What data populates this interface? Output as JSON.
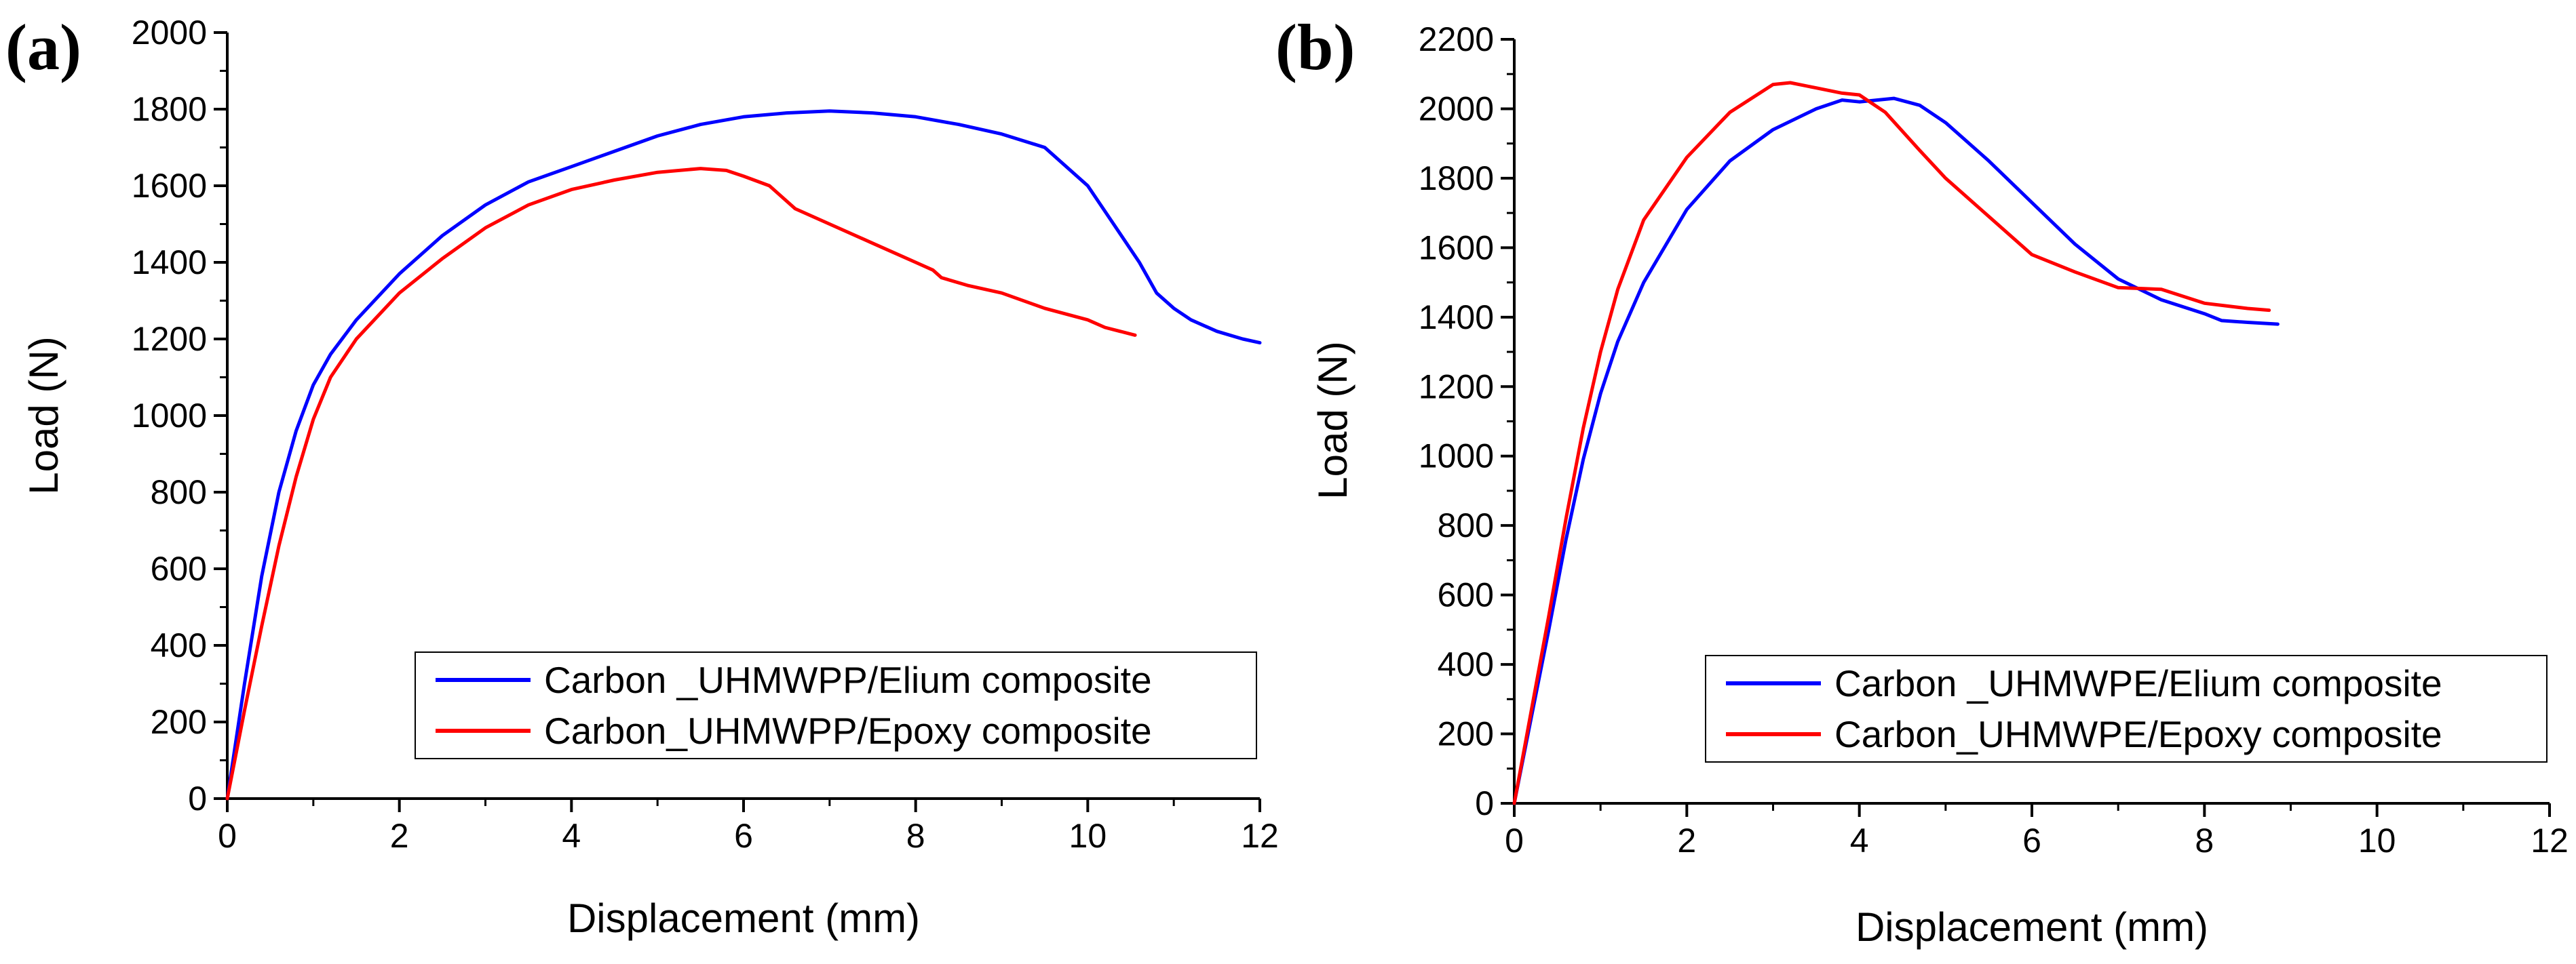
{
  "chart_data": [
    {
      "type": "line",
      "panel_label": "(a)",
      "xlabel": "Displacement (mm)",
      "ylabel": "Load (N)",
      "xlim": [
        0,
        12
      ],
      "ylim": [
        0,
        2000
      ],
      "xticks": [
        "0",
        "2",
        "4",
        "6",
        "8",
        "10",
        "12"
      ],
      "yticks": [
        "0",
        "200",
        "400",
        "600",
        "800",
        "1000",
        "1200",
        "1400",
        "1600",
        "1800",
        "2000"
      ],
      "legend_position": "bottom-right",
      "series": [
        {
          "name": "Carbon _UHMWPP/Elium composite",
          "color": "#0000ff",
          "x": [
            0,
            0.2,
            0.4,
            0.6,
            0.8,
            1.0,
            1.2,
            1.5,
            2.0,
            2.5,
            3.0,
            3.5,
            4.0,
            4.5,
            5.0,
            5.5,
            6.0,
            6.5,
            7.0,
            7.5,
            8.0,
            8.5,
            9.0,
            9.5,
            10.0,
            10.3,
            10.6,
            10.8,
            11.0,
            11.2,
            11.5,
            11.8,
            12.0
          ],
          "y": [
            0,
            300,
            580,
            800,
            960,
            1080,
            1160,
            1250,
            1370,
            1470,
            1550,
            1610,
            1650,
            1690,
            1730,
            1760,
            1780,
            1790,
            1795,
            1790,
            1780,
            1760,
            1735,
            1700,
            1600,
            1500,
            1400,
            1320,
            1280,
            1250,
            1220,
            1200,
            1190
          ]
        },
        {
          "name": "Carbon_UHMWPP/Epoxy composite",
          "color": "#ff0000",
          "x": [
            0,
            0.2,
            0.4,
            0.6,
            0.8,
            1.0,
            1.2,
            1.5,
            2.0,
            2.5,
            3.0,
            3.5,
            4.0,
            4.5,
            5.0,
            5.5,
            5.8,
            6.0,
            6.3,
            6.6,
            7.0,
            7.5,
            8.0,
            8.2,
            8.3,
            8.6,
            9.0,
            9.5,
            10.0,
            10.2,
            10.55
          ],
          "y": [
            0,
            230,
            450,
            660,
            840,
            990,
            1100,
            1200,
            1320,
            1410,
            1490,
            1550,
            1590,
            1615,
            1635,
            1645,
            1640,
            1625,
            1600,
            1540,
            1500,
            1450,
            1400,
            1380,
            1360,
            1340,
            1320,
            1280,
            1250,
            1230,
            1210
          ]
        }
      ]
    },
    {
      "type": "line",
      "panel_label": "(b)",
      "xlabel": "Displacement (mm)",
      "ylabel": "Load (N)",
      "xlim": [
        0,
        12
      ],
      "ylim": [
        0,
        2200
      ],
      "xticks": [
        "0",
        "2",
        "4",
        "6",
        "8",
        "10",
        "12"
      ],
      "yticks": [
        "0",
        "200",
        "400",
        "600",
        "800",
        "1000",
        "1200",
        "1400",
        "1600",
        "1800",
        "2000",
        "2200"
      ],
      "legend_position": "bottom-right",
      "series": [
        {
          "name": "Carbon _UHMWPE/Elium composite",
          "color": "#0000ff",
          "x": [
            0,
            0.2,
            0.4,
            0.6,
            0.8,
            1.0,
            1.2,
            1.5,
            2.0,
            2.5,
            3.0,
            3.5,
            3.8,
            4.0,
            4.4,
            4.7,
            5.0,
            5.5,
            6.0,
            6.5,
            7.0,
            7.5,
            8.0,
            8.2,
            8.5,
            8.85
          ],
          "y": [
            0,
            250,
            500,
            760,
            990,
            1180,
            1330,
            1500,
            1710,
            1850,
            1940,
            2000,
            2025,
            2020,
            2030,
            2010,
            1960,
            1850,
            1730,
            1610,
            1510,
            1450,
            1410,
            1390,
            1385,
            1380
          ]
        },
        {
          "name": "Carbon_UHMWPE/Epoxy composite",
          "color": "#ff0000",
          "x": [
            0,
            0.2,
            0.4,
            0.6,
            0.8,
            1.0,
            1.2,
            1.5,
            2.0,
            2.5,
            3.0,
            3.2,
            3.5,
            3.8,
            4.0,
            4.3,
            4.7,
            5.0,
            5.5,
            6.0,
            6.5,
            7.0,
            7.5,
            8.0,
            8.5,
            8.75
          ],
          "y": [
            0,
            270,
            540,
            820,
            1080,
            1300,
            1480,
            1680,
            1860,
            1990,
            2070,
            2075,
            2060,
            2045,
            2040,
            1990,
            1880,
            1800,
            1690,
            1580,
            1530,
            1485,
            1480,
            1440,
            1425,
            1420
          ]
        }
      ]
    }
  ]
}
